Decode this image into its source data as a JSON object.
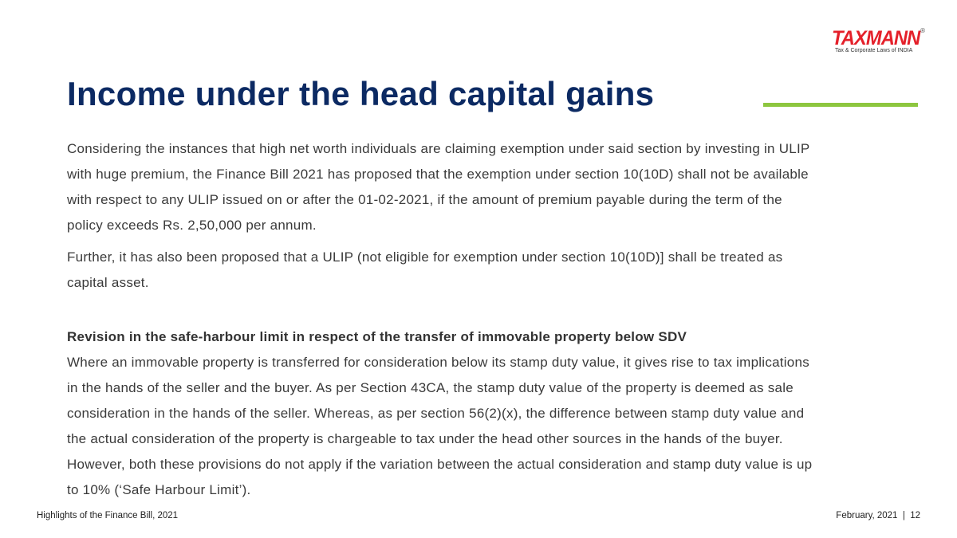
{
  "logo": {
    "text": "TAXMANN",
    "registered": "®",
    "tagline": "Tax & Corporate Laws of INDIA"
  },
  "title": "Income under the head capital gains",
  "colors": {
    "title": "#0c2a63",
    "accent_rule": "#8dc63f",
    "logo": "#e4202a"
  },
  "paragraph1": [
    "Considering the instances that high net worth individuals are claiming exemption under said section by investing in ULIP",
    "with huge premium, the Finance Bill 2021 has proposed that the exemption under section 10(10D) shall not be available",
    "with respect to any ULIP issued on or after the 01-02-2021, if the amount of premium payable during the term of the",
    "policy exceeds Rs. 2,50,000 per annum."
  ],
  "paragraph2": [
    "Further, it has also been proposed that a ULIP (not eligible for exemption under section 10(10D)] shall be treated as",
    "capital asset."
  ],
  "subheading": "Revision in the safe-harbour limit in respect of the transfer of immovable property below SDV",
  "paragraph3": [
    "Where an immovable property is transferred for consideration below its stamp duty value, it gives rise to tax implications",
    "in the hands of the seller and the buyer. As per Section 43CA, the stamp duty value of the property is deemed as sale",
    "consideration in the hands of the seller. Whereas, as per section 56(2)(x), the difference between stamp duty value and",
    "the actual consideration of the property is chargeable to tax under the head other sources in the hands of the buyer.",
    "However, both these provisions do not apply if the variation between the actual consideration and stamp duty value is up",
    "to 10% (‘Safe Harbour Limit’)."
  ],
  "footer": {
    "left": "Highlights of the Finance Bill, 2021",
    "right": "February, 2021  |  12"
  }
}
